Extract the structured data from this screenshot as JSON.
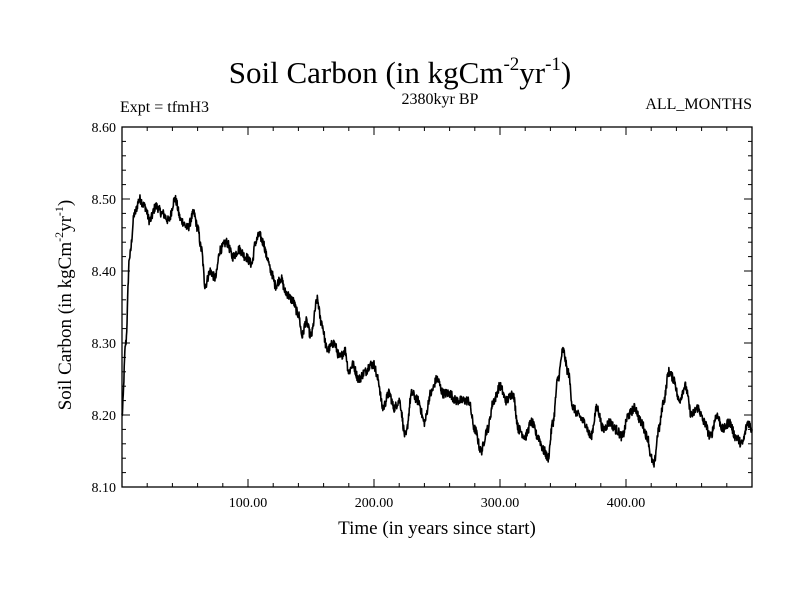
{
  "chart_data": {
    "type": "line",
    "title_main": "Soil Carbon (in kgCm",
    "title_sup1": "-2",
    "title_mid": "yr",
    "title_sup2": "-1",
    "title_end": ")",
    "left_label": "Expt = tfmH3",
    "center_label": "2380kyr BP",
    "right_label": "ALL_MONTHS",
    "xlabel": "Time (in years since start)",
    "ylabel_main": "Soil Carbon (in kgCm",
    "ylabel_sup1": "-2",
    "ylabel_mid": "yr",
    "ylabel_sup2": "-1",
    "ylabel_end": ")",
    "xlim": [
      0,
      500
    ],
    "ylim": [
      8.1,
      8.6
    ],
    "xticks": [
      100,
      200,
      300,
      400
    ],
    "xtick_labels": [
      "100.00",
      "200.00",
      "300.00",
      "400.00"
    ],
    "yticks": [
      8.1,
      8.2,
      8.3,
      8.4,
      8.5,
      8.6
    ],
    "ytick_labels": [
      "8.10",
      "8.20",
      "8.30",
      "8.40",
      "8.50",
      "8.60"
    ],
    "series": [
      {
        "name": "Soil Carbon",
        "color": "#000000",
        "x": [
          0,
          3,
          6,
          10,
          14,
          18,
          22,
          27,
          32,
          37,
          42,
          47,
          52,
          57,
          60,
          63,
          66,
          70,
          74,
          78,
          83,
          88,
          93,
          98,
          103,
          106,
          109,
          112,
          115,
          118,
          122,
          126,
          130,
          135,
          140,
          143,
          146,
          150,
          155,
          158,
          163,
          168,
          173,
          177,
          180,
          183,
          188,
          193,
          197,
          200,
          203,
          207,
          212,
          216,
          220,
          225,
          230,
          235,
          240,
          245,
          250,
          255,
          260,
          265,
          270,
          275,
          280,
          285,
          290,
          295,
          300,
          305,
          310,
          315,
          320,
          325,
          330,
          335,
          338,
          342,
          346,
          350,
          354,
          358,
          362,
          367,
          372,
          377,
          382,
          387,
          392,
          397,
          402,
          407,
          412,
          417,
          420,
          422,
          426,
          430,
          434,
          438,
          442,
          447,
          452,
          457,
          462,
          467,
          472,
          477,
          482,
          487,
          492,
          497,
          500
        ],
        "y": [
          8.2,
          8.3,
          8.42,
          8.48,
          8.5,
          8.49,
          8.47,
          8.49,
          8.48,
          8.47,
          8.5,
          8.47,
          8.46,
          8.48,
          8.46,
          8.43,
          8.38,
          8.4,
          8.39,
          8.43,
          8.44,
          8.42,
          8.43,
          8.42,
          8.41,
          8.44,
          8.45,
          8.44,
          8.42,
          8.4,
          8.38,
          8.39,
          8.37,
          8.36,
          8.34,
          8.31,
          8.33,
          8.31,
          8.36,
          8.33,
          8.29,
          8.3,
          8.28,
          8.29,
          8.26,
          8.27,
          8.25,
          8.26,
          8.27,
          8.27,
          8.25,
          8.21,
          8.23,
          8.21,
          8.22,
          8.17,
          8.23,
          8.22,
          8.19,
          8.23,
          8.25,
          8.23,
          8.23,
          8.22,
          8.22,
          8.22,
          8.18,
          8.15,
          8.18,
          8.22,
          8.24,
          8.22,
          8.23,
          8.18,
          8.17,
          8.19,
          8.17,
          8.15,
          8.14,
          8.19,
          8.25,
          8.29,
          8.26,
          8.21,
          8.2,
          8.19,
          8.17,
          8.21,
          8.18,
          8.19,
          8.18,
          8.17,
          8.2,
          8.21,
          8.19,
          8.17,
          8.14,
          8.13,
          8.18,
          8.22,
          8.26,
          8.25,
          8.22,
          8.24,
          8.2,
          8.21,
          8.19,
          8.17,
          8.2,
          8.18,
          8.19,
          8.17,
          8.16,
          8.19,
          8.18
        ]
      }
    ]
  }
}
